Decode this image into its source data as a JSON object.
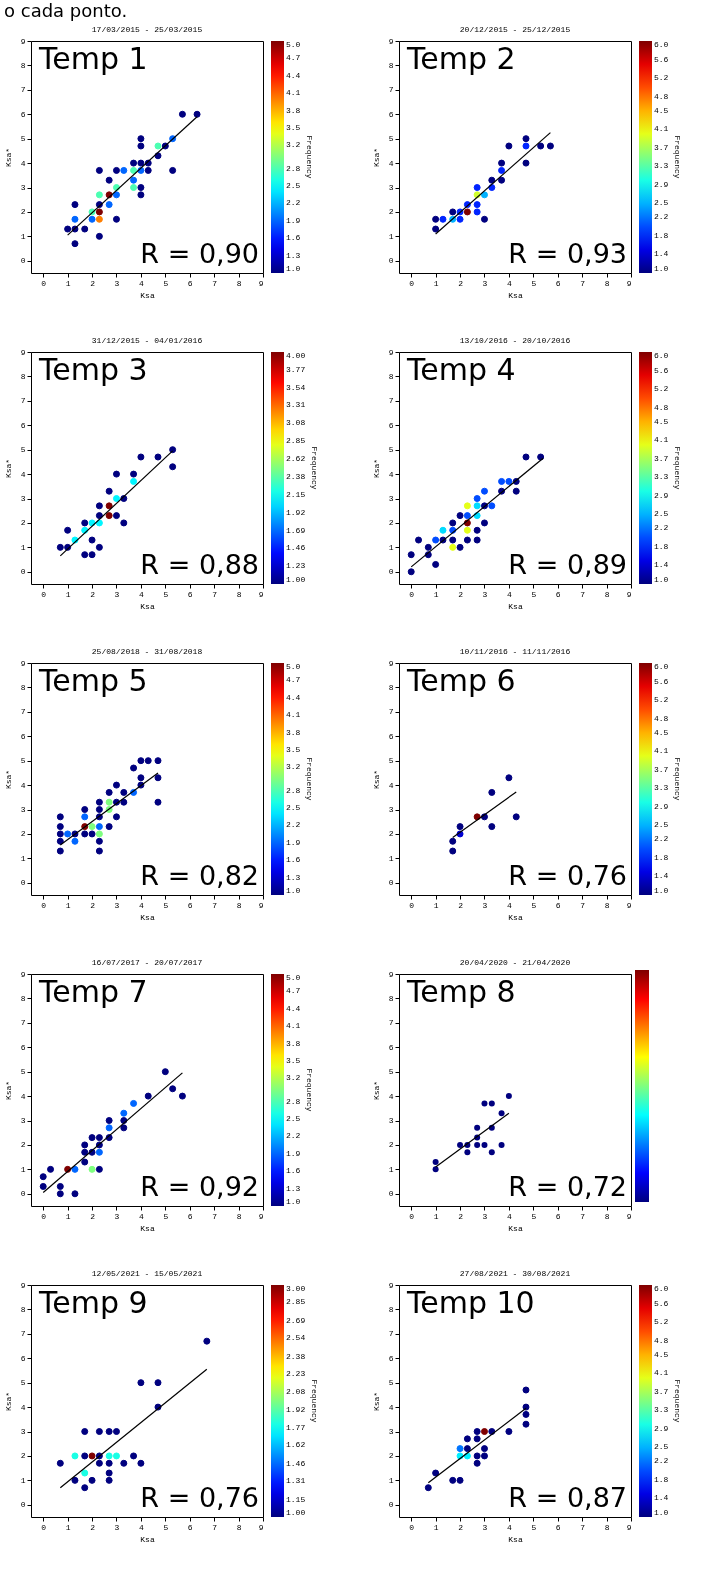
{
  "chart_data": [
    {
      "type": "scatter",
      "title": "17/03/2015 - 25/03/2015",
      "xlabel": "Ksa",
      "ylabel": "Ksa*",
      "clabel": "Frequency",
      "annotations": [
        "Temp 1",
        "R = 0,90",
        "o cada ponto."
      ],
      "marker": "circle",
      "xlim": [
        -0.5,
        9
      ],
      "ylim": [
        -0.5,
        9
      ],
      "xticks": [
        0,
        1,
        2,
        3,
        4,
        5,
        6,
        7,
        8,
        9
      ],
      "yticks": [
        0,
        1,
        2,
        3,
        4,
        5,
        6,
        7,
        8,
        9
      ],
      "clim": [
        1,
        5
      ],
      "cticks": [
        {
          "value": 1,
          "label": "1.0"
        },
        1.3,
        1.6,
        1.9,
        2.2,
        2.5,
        2.8,
        3.2,
        3.5,
        3.8,
        4.1,
        4.4,
        4.7,
        {
          "value": 5,
          "label": "5.0"
        }
      ],
      "series": [
        {
          "type": "scatter",
          "x": [
            1,
            1.3,
            1.3,
            1.3,
            1.3,
            1.7,
            2,
            2,
            2.3,
            2.3,
            2.3,
            2.3,
            2.3,
            2.3,
            2.7,
            2.7,
            2.7,
            3,
            3,
            3,
            3,
            3.3,
            3.7,
            3.7,
            3.7,
            3.7,
            4,
            4,
            4,
            4,
            4,
            4,
            4.3,
            4.3,
            4.7,
            4.7,
            5,
            5.3,
            5.3,
            5.7,
            6.3
          ],
          "values": [
            1.3,
            0.7,
            1.3,
            1.7,
            2.3,
            1.3,
            1.7,
            2,
            1,
            1.7,
            2,
            2.3,
            2.7,
            3.7,
            2.3,
            2.7,
            3.3,
            1.7,
            2.7,
            3,
            3.7,
            3.7,
            3,
            3.3,
            3.7,
            4,
            2.7,
            3,
            3.7,
            4,
            4.7,
            5,
            3.7,
            4,
            4.3,
            4.7,
            4.7,
            3.7,
            5,
            6,
            6
          ],
          "colors": [
            "#00007f",
            "#00007f",
            "#00007f",
            "#0066ff",
            "#00007f",
            "#00007f",
            "#0066ff",
            "#4cffb2",
            "#00007f",
            "#ff7f00",
            "#7f0000",
            "#00007f",
            "#4cffb2",
            "#00007f",
            "#0066ff",
            "#7f0000",
            "#00007f",
            "#00007f",
            "#0066ff",
            "#4cffb2",
            "#00007f",
            "#0066ff",
            "#4cffb2",
            "#0066ff",
            "#4cffb2",
            "#00007f",
            "#00007f",
            "#00007f",
            "#0066ff",
            "#00007f",
            "#00007f",
            "#00007f",
            "#00007f",
            "#00007f",
            "#00007f",
            "#4cffb2",
            "#00007f",
            "#00007f",
            "#0066ff",
            "#00007f",
            "#00007f"
          ],
          "cvalues": [
            1,
            1,
            1,
            1.9,
            1,
            1,
            1.9,
            2.8,
            1,
            4,
            5,
            1,
            2.8,
            1,
            1.9,
            5,
            1,
            1,
            1.9,
            2.8,
            1,
            1.9,
            2.8,
            1.9,
            2.8,
            1,
            1,
            1,
            1.9,
            1,
            1,
            1,
            1,
            1,
            1,
            2.8,
            1,
            1,
            1.9,
            1,
            1
          ]
        },
        {
          "type": "line",
          "marker": "none",
          "color": "#000000",
          "x": [
            1,
            6.3
          ],
          "values": [
            1.05,
            5.9
          ]
        }
      ]
    },
    {
      "type": "scatter",
      "title": "20/12/2015 - 25/12/2015",
      "xlabel": "Ksa",
      "ylabel": "Ksa*",
      "clabel": "Frequency",
      "annotations": [
        "Temp 2",
        "R = 0,93"
      ],
      "marker": "circle",
      "xlim": [
        -0.5,
        9
      ],
      "ylim": [
        -0.5,
        9
      ],
      "xticks": [
        0,
        1,
        2,
        3,
        4,
        5,
        6,
        7,
        8,
        9
      ],
      "yticks": [
        0,
        1,
        2,
        3,
        4,
        5,
        6,
        7,
        8,
        9
      ],
      "clim": [
        1,
        6
      ],
      "cticks": [
        {
          "value": 1,
          "label": "1.0"
        },
        1.4,
        1.8,
        2.2,
        2.5,
        2.9,
        3.3,
        3.7,
        4.1,
        4.5,
        4.8,
        5.2,
        5.6,
        {
          "value": 6,
          "label": "6.0"
        }
      ],
      "series": [
        {
          "type": "scatter",
          "x": [
            1,
            1,
            1.3,
            1.7,
            1.7,
            2,
            2,
            2.3,
            2.3,
            2.7,
            2.7,
            2.7,
            2.7,
            3,
            3,
            3.3,
            3.3,
            3.7,
            3.7,
            3.7,
            4,
            4.7,
            4.7,
            4.7,
            5.3,
            5.7
          ],
          "values": [
            1.3,
            1.7,
            1.7,
            1.7,
            2,
            1.7,
            2,
            2,
            2.3,
            2,
            2.3,
            2.7,
            3,
            1.7,
            2.7,
            3,
            3.3,
            3.3,
            3.7,
            4,
            4.7,
            4,
            4.7,
            5,
            4.7,
            4.7
          ],
          "colors": [
            "#00007f",
            "#00007f",
            "#0024ff",
            "#00b2ff",
            "#00007f",
            "#0024ff",
            "#0024ff",
            "#7f0000",
            "#0024ff",
            "#0024ff",
            "#0024ff",
            "#d1ff2e",
            "#0024ff",
            "#00007f",
            "#00b2ff",
            "#0024ff",
            "#00007f",
            "#00007f",
            "#0024ff",
            "#00007f",
            "#00007f",
            "#00007f",
            "#0024ff",
            "#00007f",
            "#00007f",
            "#00007f"
          ],
          "cvalues": [
            1,
            1,
            1.8,
            2.5,
            1,
            1.8,
            1.8,
            6,
            1.8,
            1.8,
            1.8,
            3.9,
            1.8,
            1,
            2.5,
            1.8,
            1,
            1,
            1.8,
            1,
            1,
            1,
            1.8,
            1,
            1,
            1
          ]
        },
        {
          "type": "line",
          "marker": "none",
          "color": "#000000",
          "x": [
            1,
            5.7
          ],
          "values": [
            1.1,
            5.25
          ]
        }
      ]
    },
    {
      "type": "scatter",
      "title": "31/12/2015 - 04/01/2016",
      "xlabel": "Ksa",
      "ylabel": "Ksa*",
      "clabel": "Frequency",
      "annotations": [
        "Temp 3",
        "R = 0,88"
      ],
      "marker": "circle",
      "xlim": [
        -0.5,
        9
      ],
      "ylim": [
        -0.5,
        9
      ],
      "xticks": [
        0,
        1,
        2,
        3,
        4,
        5,
        6,
        7,
        8,
        9
      ],
      "yticks": [
        0,
        1,
        2,
        3,
        4,
        5,
        6,
        7,
        8,
        9
      ],
      "clim": [
        1,
        4
      ],
      "cticks": [
        {
          "value": 1,
          "label": "1.00"
        },
        1.23,
        1.46,
        1.69,
        1.92,
        2.15,
        2.38,
        2.62,
        2.85,
        3.08,
        3.31,
        3.54,
        3.77,
        {
          "value": 4,
          "label": "4.00"
        }
      ],
      "series": [
        {
          "type": "scatter",
          "x": [
            0.7,
            1,
            1,
            1.3,
            1.7,
            1.7,
            1.7,
            2,
            2,
            2,
            2.3,
            2.3,
            2.3,
            2.3,
            2.7,
            2.7,
            2.7,
            3,
            3,
            3,
            3.3,
            3.3,
            3.7,
            3.7,
            4,
            4.7,
            5.3,
            5.3
          ],
          "values": [
            1,
            1,
            1.7,
            1.3,
            0.7,
            1.7,
            2,
            0.7,
            1.3,
            2,
            1,
            2,
            2.3,
            2.7,
            2.3,
            2.7,
            3.3,
            2.3,
            3,
            4,
            2,
            3,
            3.7,
            4,
            4.7,
            4.7,
            4.3,
            5
          ],
          "colors": [
            "#00007f",
            "#00007f",
            "#00007f",
            "#00f6ff",
            "#00007f",
            "#00f6ff",
            "#00007f",
            "#00007f",
            "#00007f",
            "#00f6ff",
            "#00007f",
            "#00f6ff",
            "#00007f",
            "#00007f",
            "#7f0000",
            "#7f0000",
            "#00007f",
            "#00007f",
            "#00f6ff",
            "#00007f",
            "#00007f",
            "#00007f",
            "#00f6ff",
            "#00007f",
            "#00007f",
            "#00007f",
            "#00007f",
            "#00007f"
          ],
          "cvalues": [
            1,
            1,
            1,
            2.1,
            1,
            2.1,
            1,
            1,
            1,
            2.1,
            1,
            2.1,
            1,
            1,
            4,
            4,
            1,
            1,
            2.1,
            1,
            1,
            1,
            2.1,
            1,
            1,
            1,
            1,
            1
          ]
        },
        {
          "type": "line",
          "marker": "none",
          "color": "#000000",
          "x": [
            0.7,
            5.3
          ],
          "values": [
            0.65,
            4.95
          ]
        }
      ]
    },
    {
      "type": "scatter",
      "title": "13/10/2016 - 20/10/2016",
      "xlabel": "Ksa",
      "ylabel": "Ksa*",
      "clabel": "Frequency",
      "annotations": [
        "Temp 4",
        "R = 0,89"
      ],
      "marker": "circle",
      "xlim": [
        -0.5,
        9
      ],
      "ylim": [
        -0.5,
        9
      ],
      "xticks": [
        0,
        1,
        2,
        3,
        4,
        5,
        6,
        7,
        8,
        9
      ],
      "yticks": [
        0,
        1,
        2,
        3,
        4,
        5,
        6,
        7,
        8,
        9
      ],
      "clim": [
        1,
        6
      ],
      "cticks": [
        {
          "value": 1,
          "label": "1.0"
        },
        1.4,
        1.8,
        2.2,
        2.5,
        2.9,
        3.3,
        3.7,
        4.1,
        4.5,
        4.8,
        5.2,
        5.6,
        {
          "value": 6,
          "label": "6.0"
        }
      ],
      "series": [
        {
          "type": "scatter",
          "x": [
            0,
            0,
            0.3,
            0.7,
            0.7,
            1,
            1,
            1.3,
            1.3,
            1.7,
            1.7,
            1.7,
            1.7,
            2,
            2,
            2.3,
            2.3,
            2.3,
            2.3,
            2.3,
            2.7,
            2.7,
            2.7,
            2.7,
            2.7,
            3,
            3,
            3,
            3.3,
            3.7,
            3.7,
            4,
            4.3,
            4.3,
            4.7,
            5.3
          ],
          "values": [
            0,
            0.7,
            1.3,
            0.7,
            1,
            0.3,
            1.3,
            1.3,
            1.7,
            1,
            1.3,
            1.7,
            2,
            1,
            2.3,
            1.3,
            1.7,
            2,
            2.3,
            2.7,
            1.3,
            1.7,
            2.3,
            2.7,
            3,
            2,
            2.7,
            3.3,
            2.7,
            3.3,
            3.7,
            3.7,
            3.3,
            3.7,
            4.7,
            4.7
          ],
          "colors": [
            "#00007f",
            "#00007f",
            "#00007f",
            "#00007f",
            "#00007f",
            "#00007f",
            "#004cff",
            "#00007f",
            "#00dbff",
            "#e5ff19",
            "#00007f",
            "#004cff",
            "#00007f",
            "#00007f",
            "#00007f",
            "#00007f",
            "#e5ff19",
            "#7f0000",
            "#004cff",
            "#e5ff19",
            "#00007f",
            "#00007f",
            "#00dbff",
            "#00dbff",
            "#004cff",
            "#00007f",
            "#00007f",
            "#004cff",
            "#004cff",
            "#00007f",
            "#004cff",
            "#004cff",
            "#00007f",
            "#00007f",
            "#00007f",
            "#00007f"
          ],
          "cvalues": [
            1,
            1,
            1,
            1,
            1,
            1,
            2,
            1,
            2.7,
            4,
            1,
            2,
            1,
            1,
            1,
            1,
            4,
            6,
            2,
            4,
            1,
            1,
            2.7,
            2.7,
            2,
            1,
            1,
            2,
            2,
            1,
            2,
            2,
            1,
            1,
            1,
            1
          ]
        },
        {
          "type": "line",
          "marker": "none",
          "color": "#000000",
          "x": [
            0,
            5.4
          ],
          "values": [
            0.2,
            4.65
          ]
        }
      ]
    },
    {
      "type": "scatter",
      "title": "25/08/2018 - 31/08/2018",
      "xlabel": "Ksa",
      "ylabel": "Ksa*",
      "clabel": "Frequency",
      "annotations": [
        "Temp 5",
        "R = 0,82"
      ],
      "marker": "circle",
      "xlim": [
        -0.5,
        9
      ],
      "ylim": [
        -0.5,
        9
      ],
      "xticks": [
        0,
        1,
        2,
        3,
        4,
        5,
        6,
        7,
        8,
        9
      ],
      "yticks": [
        0,
        1,
        2,
        3,
        4,
        5,
        6,
        7,
        8,
        9
      ],
      "clim": [
        1,
        5
      ],
      "cticks": [
        {
          "value": 1,
          "label": "1.0"
        },
        1.3,
        1.6,
        1.9,
        2.2,
        2.5,
        2.8,
        3.2,
        3.5,
        3.8,
        4.1,
        4.4,
        4.7,
        {
          "value": 5,
          "label": "5.0"
        }
      ],
      "series": [
        {
          "type": "scatter",
          "x": [
            0.7,
            0.7,
            0.7,
            0.7,
            0.7,
            1,
            1.3,
            1.3,
            1.7,
            1.7,
            1.7,
            1.7,
            2,
            2,
            2.3,
            2.3,
            2.3,
            2.3,
            2.3,
            2.3,
            2.3,
            2.7,
            2.7,
            2.7,
            2.7,
            3,
            3,
            3,
            3.3,
            3.3,
            3.7,
            3.7,
            4,
            4,
            4,
            4.3,
            4.7,
            4.7,
            4.7
          ],
          "values": [
            1.3,
            1.7,
            2,
            2.3,
            2.7,
            2,
            1.7,
            2,
            2,
            2.3,
            2.7,
            3,
            2,
            2.3,
            1.3,
            1.7,
            2,
            2.3,
            2.7,
            3,
            3.3,
            2.3,
            3,
            3.3,
            3.7,
            2.7,
            3.3,
            4,
            3.3,
            3.7,
            3.7,
            4.7,
            4,
            4.3,
            5,
            5,
            3.3,
            4.3,
            5
          ],
          "colors": [
            "#00007f",
            "#00007f",
            "#00007f",
            "#00007f",
            "#00007f",
            "#0066ff",
            "#0066ff",
            "#00007f",
            "#00007f",
            "#7f0000",
            "#0066ff",
            "#00007f",
            "#00007f",
            "#7fff7f",
            "#00007f",
            "#00007f",
            "#7fff7f",
            "#0066ff",
            "#00007f",
            "#00007f",
            "#00007f",
            "#00007f",
            "#7fff7f",
            "#7fff7f",
            "#00007f",
            "#00007f",
            "#00007f",
            "#00007f",
            "#00007f",
            "#00007f",
            "#0066ff",
            "#00007f",
            "#00007f",
            "#00007f",
            "#00007f",
            "#00007f",
            "#00007f",
            "#00007f",
            "#00007f"
          ],
          "cvalues": [
            1,
            1,
            1,
            1,
            1,
            1.9,
            1.9,
            1,
            1,
            5,
            1.9,
            1,
            1,
            3,
            1,
            1,
            3,
            1.9,
            1,
            1,
            1,
            1,
            3,
            3,
            1,
            1,
            1,
            1,
            1,
            1,
            1.9,
            1,
            1,
            1,
            1,
            1,
            1,
            1,
            1
          ]
        },
        {
          "type": "line",
          "marker": "none",
          "color": "#000000",
          "x": [
            0.7,
            4.7
          ],
          "values": [
            1.55,
            4.5
          ]
        }
      ]
    },
    {
      "type": "scatter",
      "title": "10/11/2016 - 11/11/2016",
      "xlabel": "Ksa",
      "ylabel": "Ksa*",
      "clabel": "Frequency",
      "annotations": [
        "Temp 6",
        "R = 0,76"
      ],
      "marker": "circle",
      "xlim": [
        -0.5,
        9
      ],
      "ylim": [
        -0.5,
        9
      ],
      "xticks": [
        0,
        1,
        2,
        3,
        4,
        5,
        6,
        7,
        8,
        9
      ],
      "yticks": [
        0,
        1,
        2,
        3,
        4,
        5,
        6,
        7,
        8,
        9
      ],
      "clim": [
        1,
        6
      ],
      "cticks": [
        {
          "value": 1,
          "label": "1.0"
        },
        1.4,
        1.8,
        2.2,
        2.5,
        2.9,
        3.3,
        3.7,
        4.1,
        4.5,
        4.8,
        5.2,
        5.6,
        {
          "value": 6,
          "label": "6.0"
        }
      ],
      "series": [
        {
          "type": "scatter",
          "x": [
            1.7,
            1.7,
            2,
            2,
            2.7,
            3,
            3.3,
            3.3,
            4,
            4.3
          ],
          "values": [
            1.3,
            1.7,
            2,
            2.3,
            2.7,
            2.7,
            2.3,
            3.7,
            4.3,
            2.7
          ],
          "colors": [
            "#00007f",
            "#00007f",
            "#0000d1",
            "#00007f",
            "#7f0000",
            "#00007f",
            "#00007f",
            "#00007f",
            "#00007f",
            "#00007f"
          ],
          "cvalues": [
            1,
            1,
            1.4,
            1,
            6,
            1,
            1,
            1,
            1,
            1
          ]
        },
        {
          "type": "line",
          "marker": "none",
          "color": "#000000",
          "x": [
            1.7,
            4.3
          ],
          "values": [
            1.85,
            3.72
          ]
        }
      ]
    },
    {
      "type": "scatter",
      "title": "16/07/2017 - 20/07/2017",
      "xlabel": "Ksa",
      "ylabel": "Ksa*",
      "clabel": "Frequency",
      "annotations": [
        "Temp 7",
        "R = 0,92"
      ],
      "marker": "circle",
      "xlim": [
        -0.5,
        9
      ],
      "ylim": [
        -0.5,
        9
      ],
      "xticks": [
        0,
        1,
        2,
        3,
        4,
        5,
        6,
        7,
        8,
        9
      ],
      "yticks": [
        0,
        1,
        2,
        3,
        4,
        5,
        6,
        7,
        8,
        9
      ],
      "clim": [
        1,
        5
      ],
      "cticks": [
        {
          "value": 1,
          "label": "1.0"
        },
        1.3,
        1.6,
        1.9,
        2.2,
        2.5,
        2.8,
        3.2,
        3.5,
        3.8,
        4.1,
        4.4,
        4.7,
        {
          "value": 5,
          "label": "5.0"
        }
      ],
      "series": [
        {
          "type": "scatter",
          "x": [
            0,
            0,
            0.3,
            0.7,
            0.7,
            1,
            1.3,
            1.3,
            1.7,
            1.7,
            1.7,
            2,
            2,
            2,
            2.3,
            2.3,
            2.3,
            2.3,
            2.7,
            2.7,
            2.7,
            3.3,
            3.3,
            3.3,
            3.7,
            4.3,
            5,
            5.3,
            5.7
          ],
          "values": [
            0.3,
            0.7,
            1,
            0,
            0.3,
            1,
            0,
            1,
            1.3,
            1.7,
            2,
            1,
            1.7,
            2.3,
            1,
            1.7,
            2,
            2.3,
            2.3,
            2.7,
            3,
            2.7,
            3,
            3.3,
            3.7,
            4,
            5,
            4.3,
            4
          ],
          "colors": [
            "#00007f",
            "#00007f",
            "#00007f",
            "#00007f",
            "#00007f",
            "#7f0000",
            "#00007f",
            "#0066ff",
            "#00007f",
            "#00007f",
            "#00007f",
            "#7fff7f",
            "#00007f",
            "#00007f",
            "#00007f",
            "#0066ff",
            "#00007f",
            "#00007f",
            "#00007f",
            "#0066ff",
            "#00007f",
            "#00007f",
            "#00007f",
            "#0066ff",
            "#0066ff",
            "#00007f",
            "#00007f",
            "#00007f",
            "#00007f"
          ],
          "cvalues": [
            1,
            1,
            1,
            1,
            1,
            5,
            1,
            1.9,
            1,
            1,
            1,
            3,
            1,
            1,
            1,
            1.9,
            1,
            1,
            1,
            1.9,
            1,
            1,
            1,
            1.9,
            1.9,
            1,
            1,
            1,
            1
          ]
        },
        {
          "type": "line",
          "marker": "none",
          "color": "#000000",
          "x": [
            0,
            5.7
          ],
          "values": [
            0.05,
            4.95
          ]
        }
      ]
    },
    {
      "type": "scatter",
      "title": "20/04/2020 - 21/04/2020",
      "xlabel": "Ksa",
      "ylabel": "Ksa*",
      "annotations": [
        "Temp 8",
        "R = 0,72"
      ],
      "marker": "circle",
      "xlim": [
        -0.5,
        9
      ],
      "ylim": [
        -0.5,
        9
      ],
      "xticks": [
        0,
        1,
        2,
        3,
        4,
        5,
        6,
        7,
        8,
        9
      ],
      "yticks": [
        0,
        1,
        2,
        3,
        4,
        5,
        6,
        7,
        8,
        9
      ],
      "series": [
        {
          "type": "scatter",
          "color": "#00007f",
          "x": [
            1,
            1,
            2,
            2.3,
            2.3,
            2.7,
            2.7,
            2.7,
            3,
            3,
            3.3,
            3.3,
            3.3,
            3.7,
            3.7,
            4
          ],
          "values": [
            1,
            1.3,
            2,
            1.7,
            2,
            2,
            2.3,
            2.7,
            2,
            3.7,
            1.7,
            2.7,
            3.7,
            2,
            3.3,
            4
          ]
        },
        {
          "type": "line",
          "marker": "none",
          "color": "#000000",
          "x": [
            1,
            4
          ],
          "values": [
            1.1,
            3.3
          ]
        }
      ]
    },
    {
      "type": "scatter",
      "title": "12/05/2021 - 15/05/2021",
      "xlabel": "Ksa",
      "ylabel": "Ksa*",
      "clabel": "Frequency",
      "annotations": [
        "Temp 9",
        "R = 0,76"
      ],
      "marker": "circle",
      "xlim": [
        -0.5,
        9
      ],
      "ylim": [
        -0.5,
        9
      ],
      "xticks": [
        0,
        1,
        2,
        3,
        4,
        5,
        6,
        7,
        8,
        9
      ],
      "yticks": [
        0,
        1,
        2,
        3,
        4,
        5,
        6,
        7,
        8,
        9
      ],
      "clim": [
        1,
        3
      ],
      "cticks": [
        {
          "value": 1,
          "label": "1.00"
        },
        1.15,
        1.31,
        1.46,
        1.62,
        1.77,
        1.92,
        2.08,
        2.23,
        2.38,
        2.54,
        2.69,
        2.85,
        {
          "value": 3,
          "label": "3.00"
        }
      ],
      "series": [
        {
          "type": "scatter",
          "x": [
            0.7,
            1.3,
            1.3,
            1.7,
            1.7,
            1.7,
            1.7,
            2,
            2,
            2.3,
            2.3,
            2.3,
            2.7,
            2.7,
            2.7,
            2.7,
            2.7,
            3,
            3,
            3.3,
            3.7,
            4,
            4,
            4.7,
            4.7,
            6.7
          ],
          "values": [
            1.7,
            1,
            2,
            0.7,
            1.3,
            2,
            3,
            1,
            2,
            1.7,
            2,
            3,
            1,
            1.3,
            1.7,
            2,
            3,
            2,
            3,
            1.7,
            2,
            1.7,
            5,
            4,
            5,
            6.7
          ],
          "colors": [
            "#00007f",
            "#00007f",
            "#19ffe5",
            "#00007f",
            "#19ffe5",
            "#00007f",
            "#00007f",
            "#00007f",
            "#7f0000",
            "#00007f",
            "#00007f",
            "#00007f",
            "#00007f",
            "#00007f",
            "#00007f",
            "#19ffe5",
            "#00007f",
            "#19ffe5",
            "#00007f",
            "#00007f",
            "#00007f",
            "#00007f",
            "#00007f",
            "#00007f",
            "#00007f",
            "#00007f"
          ],
          "cvalues": [
            1,
            1,
            1.8,
            1,
            1.8,
            1,
            1,
            1,
            3,
            1,
            1,
            1,
            1,
            1,
            1,
            1.8,
            1,
            1.8,
            1,
            1,
            1,
            1,
            1,
            1,
            1,
            1
          ]
        },
        {
          "type": "line",
          "marker": "none",
          "color": "#000000",
          "x": [
            0.7,
            6.7
          ],
          "values": [
            0.7,
            5.55
          ]
        }
      ]
    },
    {
      "type": "scatter",
      "title": "27/08/2021 - 30/08/2021",
      "xlabel": "Ksa",
      "ylabel": "Ksa*",
      "clabel": "Frequency",
      "annotations": [
        "Temp 10",
        "R = 0,87"
      ],
      "marker": "circle",
      "xlim": [
        -0.5,
        9
      ],
      "ylim": [
        -0.5,
        9
      ],
      "xticks": [
        0,
        1,
        2,
        3,
        4,
        5,
        6,
        7,
        8,
        9
      ],
      "yticks": [
        0,
        1,
        2,
        3,
        4,
        5,
        6,
        7,
        8,
        9
      ],
      "clim": [
        1,
        6
      ],
      "cticks": [
        {
          "value": 1,
          "label": "1.0"
        },
        1.4,
        1.8,
        2.2,
        2.5,
        2.9,
        3.3,
        3.7,
        4.1,
        4.5,
        4.8,
        5.2,
        5.6,
        {
          "value": 6,
          "label": "6.0"
        }
      ],
      "series": [
        {
          "type": "scatter",
          "x": [
            0.7,
            1,
            1.7,
            2,
            2,
            2,
            2.3,
            2.3,
            2.3,
            2.7,
            2.7,
            2.7,
            2.7,
            3,
            3,
            3,
            3.3,
            4,
            4.7,
            4.7,
            4.7,
            4.7
          ],
          "values": [
            0.7,
            1.3,
            1,
            1,
            2,
            2.3,
            2,
            2.3,
            2.7,
            1.7,
            2,
            2.7,
            3,
            2,
            2.3,
            3,
            3,
            3,
            3.3,
            3.7,
            4,
            4.7
          ],
          "colors": [
            "#00007f",
            "#00007f",
            "#00007f",
            "#00007f",
            "#00f0ff",
            "#0075ff",
            "#00f0ff",
            "#00007f",
            "#00007f",
            "#00007f",
            "#00007f",
            "#00007f",
            "#00007f",
            "#00007f",
            "#00007f",
            "#7f0000",
            "#00007f",
            "#00007f",
            "#00007f",
            "#00007f",
            "#00007f",
            "#00007f"
          ],
          "cvalues": [
            1,
            1,
            1,
            1,
            2.8,
            2.2,
            2.8,
            1,
            1,
            1,
            1,
            1,
            1,
            1,
            1,
            6,
            1,
            1,
            1,
            1,
            1,
            1
          ]
        },
        {
          "type": "line",
          "marker": "none",
          "color": "#000000",
          "x": [
            0.7,
            4.7
          ],
          "values": [
            0.9,
            3.95
          ]
        }
      ]
    }
  ]
}
